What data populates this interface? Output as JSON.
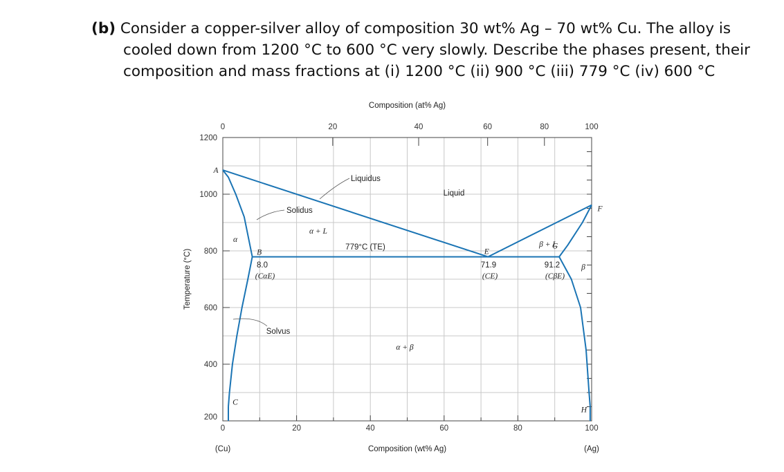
{
  "question": {
    "prefix": "(b)",
    "line1": "Consider a copper-silver alloy of composition 30 wt% Ag – 70 wt% Cu. The alloy is",
    "line2": "cooled down from 1200 °C to 600 °C very slowly. Describe the phases present, their",
    "line3": "composition and mass fractions at (i) 1200 °C (ii) 900 °C (iii) 779 °C (iv) 600 °C"
  },
  "chart_data": {
    "type": "line",
    "title": "",
    "top_axis_label": "Composition (at% Ag)",
    "xlabel": "Composition (wt% Ag)",
    "ylabel": "Temperature (°C)",
    "xlim": [
      0,
      100
    ],
    "ylim": [
      200,
      1200
    ],
    "x_ticks": [
      "0",
      "20",
      "40",
      "60",
      "80",
      "100"
    ],
    "x_end_labels": {
      "left": "(Cu)",
      "right": "(Ag)"
    },
    "top_ticks": [
      {
        "at_pct": 0,
        "wt_pct": 0,
        "label": "0"
      },
      {
        "at_pct": 20,
        "wt_pct": 29.8,
        "label": "20"
      },
      {
        "at_pct": 40,
        "wt_pct": 53.1,
        "label": "40"
      },
      {
        "at_pct": 60,
        "wt_pct": 71.8,
        "label": "60"
      },
      {
        "at_pct": 80,
        "wt_pct": 87.2,
        "label": "80"
      },
      {
        "at_pct": 100,
        "wt_pct": 100,
        "label": "100"
      }
    ],
    "y_ticks": [
      "200",
      "400",
      "600",
      "800",
      "1000",
      "1200"
    ],
    "grid": true,
    "series": [
      {
        "name": "Liquidus",
        "points": [
          [
            0,
            1085
          ],
          [
            71.9,
            779
          ],
          [
            100,
            962
          ]
        ]
      },
      {
        "name": "Solidus",
        "points": [
          [
            0,
            1085
          ],
          [
            1.5,
            1060
          ],
          [
            3.5,
            1000
          ],
          [
            5.8,
            920
          ],
          [
            8.0,
            779
          ]
        ]
      },
      {
        "name": "Solvus",
        "points": [
          [
            8.0,
            779
          ],
          [
            6.8,
            700
          ],
          [
            5.2,
            600
          ],
          [
            3.8,
            500
          ],
          [
            2.6,
            400
          ],
          [
            1.8,
            300
          ],
          [
            1.5,
            250
          ]
        ]
      },
      {
        "name": "Eutectic isotherm",
        "points": [
          [
            8.0,
            779
          ],
          [
            91.2,
            779
          ]
        ]
      },
      {
        "name": "Solidus (β)",
        "points": [
          [
            100,
            962
          ],
          [
            97.5,
            900
          ],
          [
            93.5,
            820
          ],
          [
            91.2,
            779
          ]
        ]
      },
      {
        "name": "Solvus (β)",
        "points": [
          [
            91.2,
            779
          ],
          [
            94.5,
            700
          ],
          [
            97,
            600
          ],
          [
            98.5,
            450
          ],
          [
            99.3,
            300
          ],
          [
            99.6,
            250
          ]
        ]
      }
    ],
    "point_labels": [
      {
        "text": "A",
        "x": 0,
        "y": 1085
      },
      {
        "text": "B",
        "x": 8.0,
        "y": 779
      },
      {
        "text": "C",
        "x": 1.5,
        "y": 250
      },
      {
        "text": "E",
        "x": 71.9,
        "y": 779
      },
      {
        "text": "F",
        "x": 100,
        "y": 962
      },
      {
        "text": "G",
        "x": 91.2,
        "y": 779
      },
      {
        "text": "H",
        "x": 99.6,
        "y": 250
      }
    ],
    "annotations": {
      "liquidus": "Liquidus",
      "solidus": "Solidus",
      "solvus": "Solvus",
      "liquid_region": "Liquid",
      "alpha_region": "α",
      "alpha_plus_liquid": "α + L",
      "beta_plus_liquid": "β + L",
      "beta_region": "β",
      "alpha_plus_beta": "α + β",
      "eutectic_temp": "779°C (TE)",
      "comp_alphaE": "8.0",
      "comp_alphaE_sym": "(CαE)",
      "comp_E": "71.9",
      "comp_E_sym": "(CE)",
      "comp_betaE": "91.2",
      "comp_betaE_sym": "(CβE)"
    },
    "colors": {
      "curve": "#1a74b4",
      "grid": "#c8c8c8",
      "frame": "#444444"
    }
  }
}
